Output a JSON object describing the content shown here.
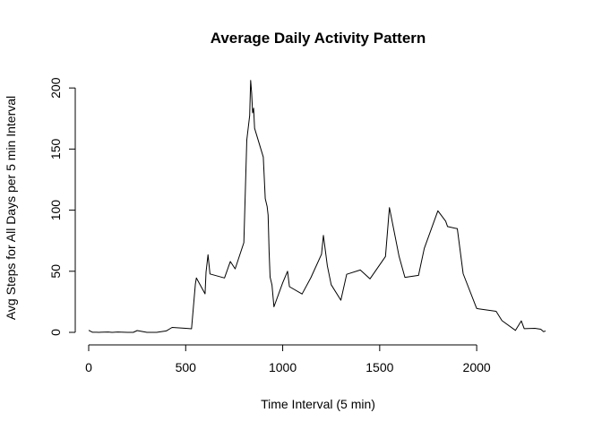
{
  "chart_data": {
    "type": "line",
    "title": "Average Daily Activity Pattern",
    "xlabel": "Time Interval (5 min)",
    "ylabel": "Avg Steps for All Days per 5 min Interval",
    "xlim": [
      0,
      2355
    ],
    "ylim": [
      0,
      206
    ],
    "x_ticks": [
      0,
      500,
      1000,
      1500,
      2000
    ],
    "y_ticks": [
      0,
      50,
      100,
      150,
      200
    ],
    "grid": false,
    "series": [
      {
        "color": "#000000",
        "points": [
          [
            0,
            1.7
          ],
          [
            20,
            0.1
          ],
          [
            40,
            0.1
          ],
          [
            55,
            0.0
          ],
          [
            60,
            0.1
          ],
          [
            100,
            0.3
          ],
          [
            120,
            0.0
          ],
          [
            150,
            0.3
          ],
          [
            200,
            0.0
          ],
          [
            230,
            0.0
          ],
          [
            250,
            1.5
          ],
          [
            300,
            0.0
          ],
          [
            350,
            0.0
          ],
          [
            400,
            1.2
          ],
          [
            430,
            4.0
          ],
          [
            500,
            3.3
          ],
          [
            530,
            2.9
          ],
          [
            550,
            39.5
          ],
          [
            555,
            44.5
          ],
          [
            600,
            31.5
          ],
          [
            605,
            49.3
          ],
          [
            615,
            63.5
          ],
          [
            625,
            47.8
          ],
          [
            700,
            44.5
          ],
          [
            730,
            58.0
          ],
          [
            755,
            52.0
          ],
          [
            800,
            73.4
          ],
          [
            810,
            129.4
          ],
          [
            815,
            157.5
          ],
          [
            825,
            171.2
          ],
          [
            830,
            177.3
          ],
          [
            835,
            206.2
          ],
          [
            840,
            195.9
          ],
          [
            845,
            179.6
          ],
          [
            850,
            183.4
          ],
          [
            855,
            167.0
          ],
          [
            900,
            143.5
          ],
          [
            910,
            109.4
          ],
          [
            920,
            103.0
          ],
          [
            925,
            95.9
          ],
          [
            930,
            66.2
          ],
          [
            935,
            45.2
          ],
          [
            945,
            38.8
          ],
          [
            955,
            20.9
          ],
          [
            1000,
            40.6
          ],
          [
            1025,
            50.0
          ],
          [
            1035,
            37.4
          ],
          [
            1100,
            31.4
          ],
          [
            1145,
            44.7
          ],
          [
            1200,
            63.9
          ],
          [
            1210,
            79.4
          ],
          [
            1230,
            54.5
          ],
          [
            1250,
            39.0
          ],
          [
            1300,
            26.3
          ],
          [
            1330,
            47.5
          ],
          [
            1400,
            51.0
          ],
          [
            1450,
            43.8
          ],
          [
            1530,
            62.1
          ],
          [
            1550,
            102.1
          ],
          [
            1600,
            62.1
          ],
          [
            1630,
            45.0
          ],
          [
            1700,
            46.6
          ],
          [
            1730,
            68.7
          ],
          [
            1800,
            99.5
          ],
          [
            1840,
            91.0
          ],
          [
            1850,
            86.6
          ],
          [
            1900,
            84.8
          ],
          [
            1930,
            48.0
          ],
          [
            2000,
            19.6
          ],
          [
            2010,
            19.3
          ],
          [
            2100,
            17.2
          ],
          [
            2130,
            9.6
          ],
          [
            2200,
            1.6
          ],
          [
            2230,
            9.4
          ],
          [
            2245,
            3.0
          ],
          [
            2300,
            3.3
          ],
          [
            2330,
            2.6
          ],
          [
            2345,
            0.6
          ],
          [
            2355,
            1.1
          ]
        ]
      }
    ]
  }
}
